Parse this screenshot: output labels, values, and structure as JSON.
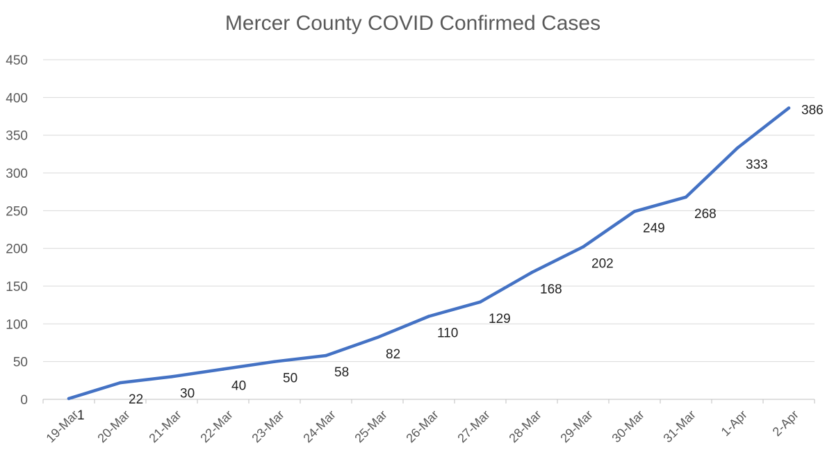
{
  "chart_data": {
    "type": "line",
    "title": "Mercer County COVID Confirmed Cases",
    "xlabel": "",
    "ylabel": "",
    "categories": [
      "19-Mar",
      "20-Mar",
      "21-Mar",
      "22-Mar",
      "23-Mar",
      "24-Mar",
      "25-Mar",
      "26-Mar",
      "27-Mar",
      "28-Mar",
      "29-Mar",
      "30-Mar",
      "31-Mar",
      "1-Apr",
      "2-Apr"
    ],
    "series": [
      {
        "values": [
          1,
          22,
          30,
          40,
          50,
          58,
          82,
          110,
          129,
          168,
          202,
          249,
          268,
          333,
          386
        ],
        "color": "#4472C4"
      }
    ],
    "ylim": [
      0,
      450
    ],
    "yticks": [
      0,
      50,
      100,
      150,
      200,
      250,
      300,
      350,
      400,
      450
    ],
    "grid": true,
    "legend": "none",
    "data_labels": true
  }
}
